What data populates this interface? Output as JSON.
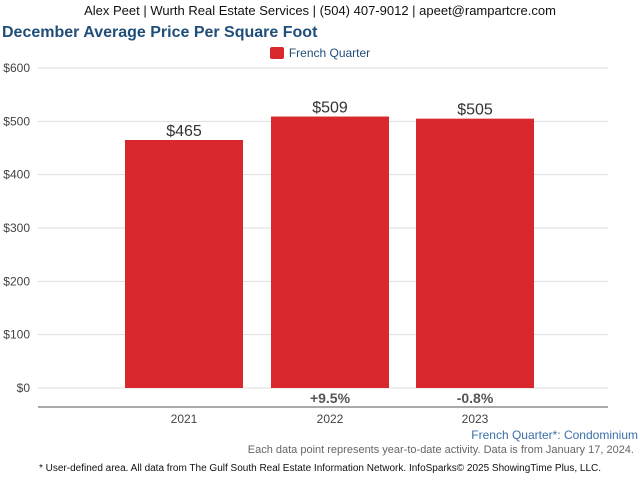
{
  "header": {
    "contact": "Alex Peet | Wurth Real Estate Services | (504) 407-9012 | apeet@rampartcre.com"
  },
  "chart_data": {
    "type": "bar",
    "title": "December Average Price Per Square Foot",
    "categories": [
      "2021",
      "2022",
      "2023"
    ],
    "series": [
      {
        "name": "French Quarter",
        "values": [
          465,
          509,
          505
        ],
        "color": "#d9272e"
      }
    ],
    "value_labels": [
      "$465",
      "$509",
      "$505"
    ],
    "change_labels": [
      "",
      "+9.5%",
      "-0.8%"
    ],
    "yticks": [
      0,
      100,
      200,
      300,
      400,
      500,
      600
    ],
    "ytick_labels": [
      "$0",
      "$100",
      "$200",
      "$300",
      "$400",
      "$500",
      "$600"
    ],
    "ylim": [
      0,
      600
    ],
    "grid": true,
    "legend_position": "top-center",
    "xlabel": "",
    "ylabel": ""
  },
  "footer": {
    "area_label": "French Quarter*: Condominium",
    "note": "Each data point represents year-to-date activity. Data is from January 17, 2024.",
    "source": "* User-defined area. All data from The Gulf South Real Estate Information Network. InfoSparks© 2025 ShowingTime Plus, LLC."
  }
}
